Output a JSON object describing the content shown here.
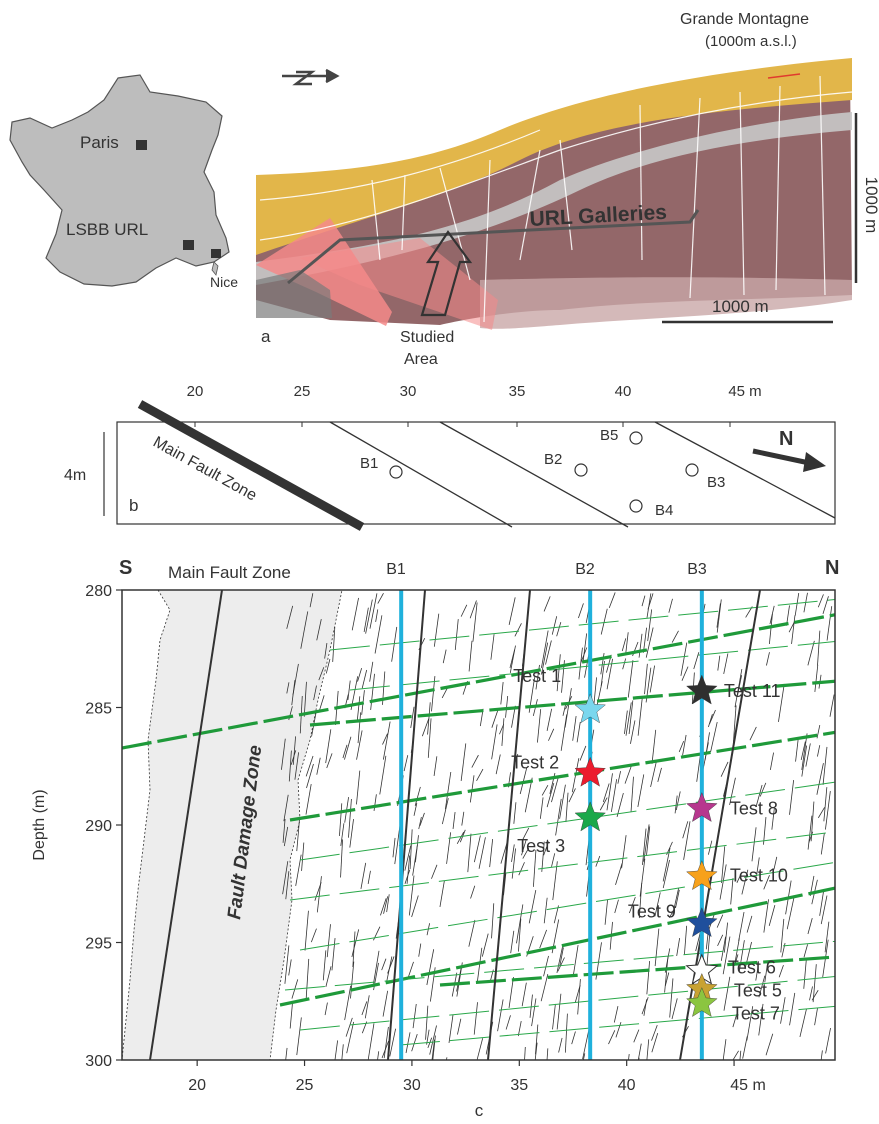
{
  "panel_a": {
    "cities": [
      "Paris",
      "LSBB URL",
      "Nice"
    ],
    "mountain_label_1": "Grande Montagne",
    "mountain_label_2": "(1000m a.s.l.)",
    "galleries_label": "URL Galleries",
    "studied_area_1": "Studied",
    "studied_area_2": "Area",
    "vertical_scale": "1000 m",
    "horizontal_scale": "1000 m",
    "panel_letter": "a",
    "colors": {
      "surface": "#e2b64a",
      "fault_block": "#8a5a5c",
      "fault_plane": "#f48a8a",
      "map": "#bdbdbd"
    }
  },
  "panel_b": {
    "axis_ticks": [
      "20",
      "25",
      "30",
      "35",
      "40",
      "45 m"
    ],
    "height_label": "4m",
    "fault_label": "Main Fault Zone",
    "boreholes": [
      "B1",
      "B2",
      "B3",
      "B4",
      "B5"
    ],
    "north_label": "N",
    "panel_letter": "b"
  },
  "panel_c": {
    "south_label": "S",
    "north_label": "N",
    "fault_label": "Main Fault Zone",
    "damage_zone_label": "Fault Damage Zone",
    "borehole_labels": [
      "B1",
      "B2",
      "B3"
    ],
    "y_label": "Depth (m)",
    "x_label": "c",
    "colors": {
      "borehole": "#1fb1dc",
      "bedding": "#1f9a3a",
      "damage_zone": "#ededed"
    },
    "chart_data": {
      "type": "scatter",
      "xlabel": "",
      "ylabel": "Depth (m)",
      "xlim": [
        16.5,
        49.7
      ],
      "ylim": [
        300,
        280
      ],
      "x_ticks": [
        "20",
        "25",
        "30",
        "35",
        "40",
        "45 m"
      ],
      "y_ticks": [
        "280",
        "285",
        "290",
        "295",
        "300"
      ],
      "boreholes": [
        {
          "name": "B1",
          "x": 29.5
        },
        {
          "name": "B2",
          "x": 38.3
        },
        {
          "name": "B3",
          "x": 43.5
        }
      ],
      "tests": [
        {
          "name": "Test 1",
          "x": 38.3,
          "depth": 285.1,
          "color": "#7ad7ee"
        },
        {
          "name": "Test 2",
          "x": 38.3,
          "depth": 287.8,
          "color": "#ec1c2e"
        },
        {
          "name": "Test 3",
          "x": 38.3,
          "depth": 289.7,
          "color": "#1aa84a"
        },
        {
          "name": "Test 11",
          "x": 43.5,
          "depth": 284.3,
          "color": "#2f2f2f"
        },
        {
          "name": "Test 8",
          "x": 43.5,
          "depth": 289.3,
          "color": "#b7378e"
        },
        {
          "name": "Test 10",
          "x": 43.5,
          "depth": 292.2,
          "color": "#f7a11b"
        },
        {
          "name": "Test 9",
          "x": 43.5,
          "depth": 294.2,
          "color": "#1f4f9c"
        },
        {
          "name": "Test 6",
          "x": 43.5,
          "depth": 296.2,
          "color": "#ffffff"
        },
        {
          "name": "Test 5",
          "x": 43.5,
          "depth": 297.0,
          "color": "#c8a232"
        },
        {
          "name": "Test 7",
          "x": 43.5,
          "depth": 297.6,
          "color": "#8bc540"
        }
      ]
    }
  }
}
